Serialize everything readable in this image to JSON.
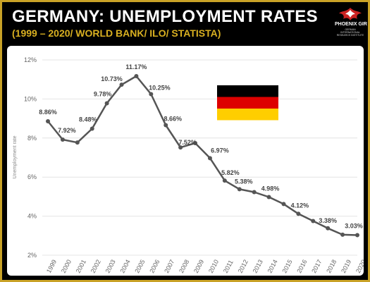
{
  "header": {
    "title": "GERMANY: UNEMPLOYMENT RATES",
    "subtitle": "(1999 – 2020/ WORLD BANK/ ILO/ STATISTA)",
    "logo_text": "PHOENIX GIR",
    "logo_sub": "GERMAN INTERNATIONAL RESEARCH INSTITUTE"
  },
  "colors": {
    "frame": "#c9a227",
    "header_bg": "#000000",
    "subtitle": "#d9b021",
    "line": "#555555",
    "flag": [
      "#000000",
      "#dd0000",
      "#ffce00"
    ]
  },
  "chart_data": {
    "type": "line",
    "title": "",
    "xlabel": "",
    "ylabel": "Unemployment rate",
    "ylim": [
      2,
      12
    ],
    "yticks": [
      2,
      4,
      6,
      8,
      10,
      12
    ],
    "ytick_labels": [
      "2%",
      "4%",
      "6%",
      "8%",
      "10%",
      "12%"
    ],
    "grid": "horizontal",
    "x": [
      "1999",
      "2000",
      "2001",
      "2002",
      "2003",
      "2004",
      "2005",
      "2006",
      "2007",
      "2008",
      "2009",
      "2010",
      "2011",
      "2012",
      "2013",
      "2014",
      "2015",
      "2016",
      "2017",
      "2018",
      "2019",
      "2020"
    ],
    "series": [
      {
        "values": [
          8.86,
          7.92,
          7.77,
          8.48,
          9.78,
          10.73,
          11.17,
          10.25,
          8.66,
          7.52,
          7.74,
          6.97,
          5.82,
          5.38,
          5.23,
          4.98,
          4.62,
          4.12,
          3.75,
          3.38,
          3.05,
          3.03
        ]
      }
    ],
    "labels": [
      "8.86%",
      "7.92%",
      "",
      "8.48%",
      "9.78%",
      "10.73%",
      "11.17%",
      "10.25%",
      "8.66%",
      "7.52%",
      "",
      "6.97%",
      "5.82%",
      "5.38%",
      "",
      "4.98%",
      "",
      "4.12%",
      "",
      "3.38%",
      "",
      "3.03%"
    ]
  }
}
